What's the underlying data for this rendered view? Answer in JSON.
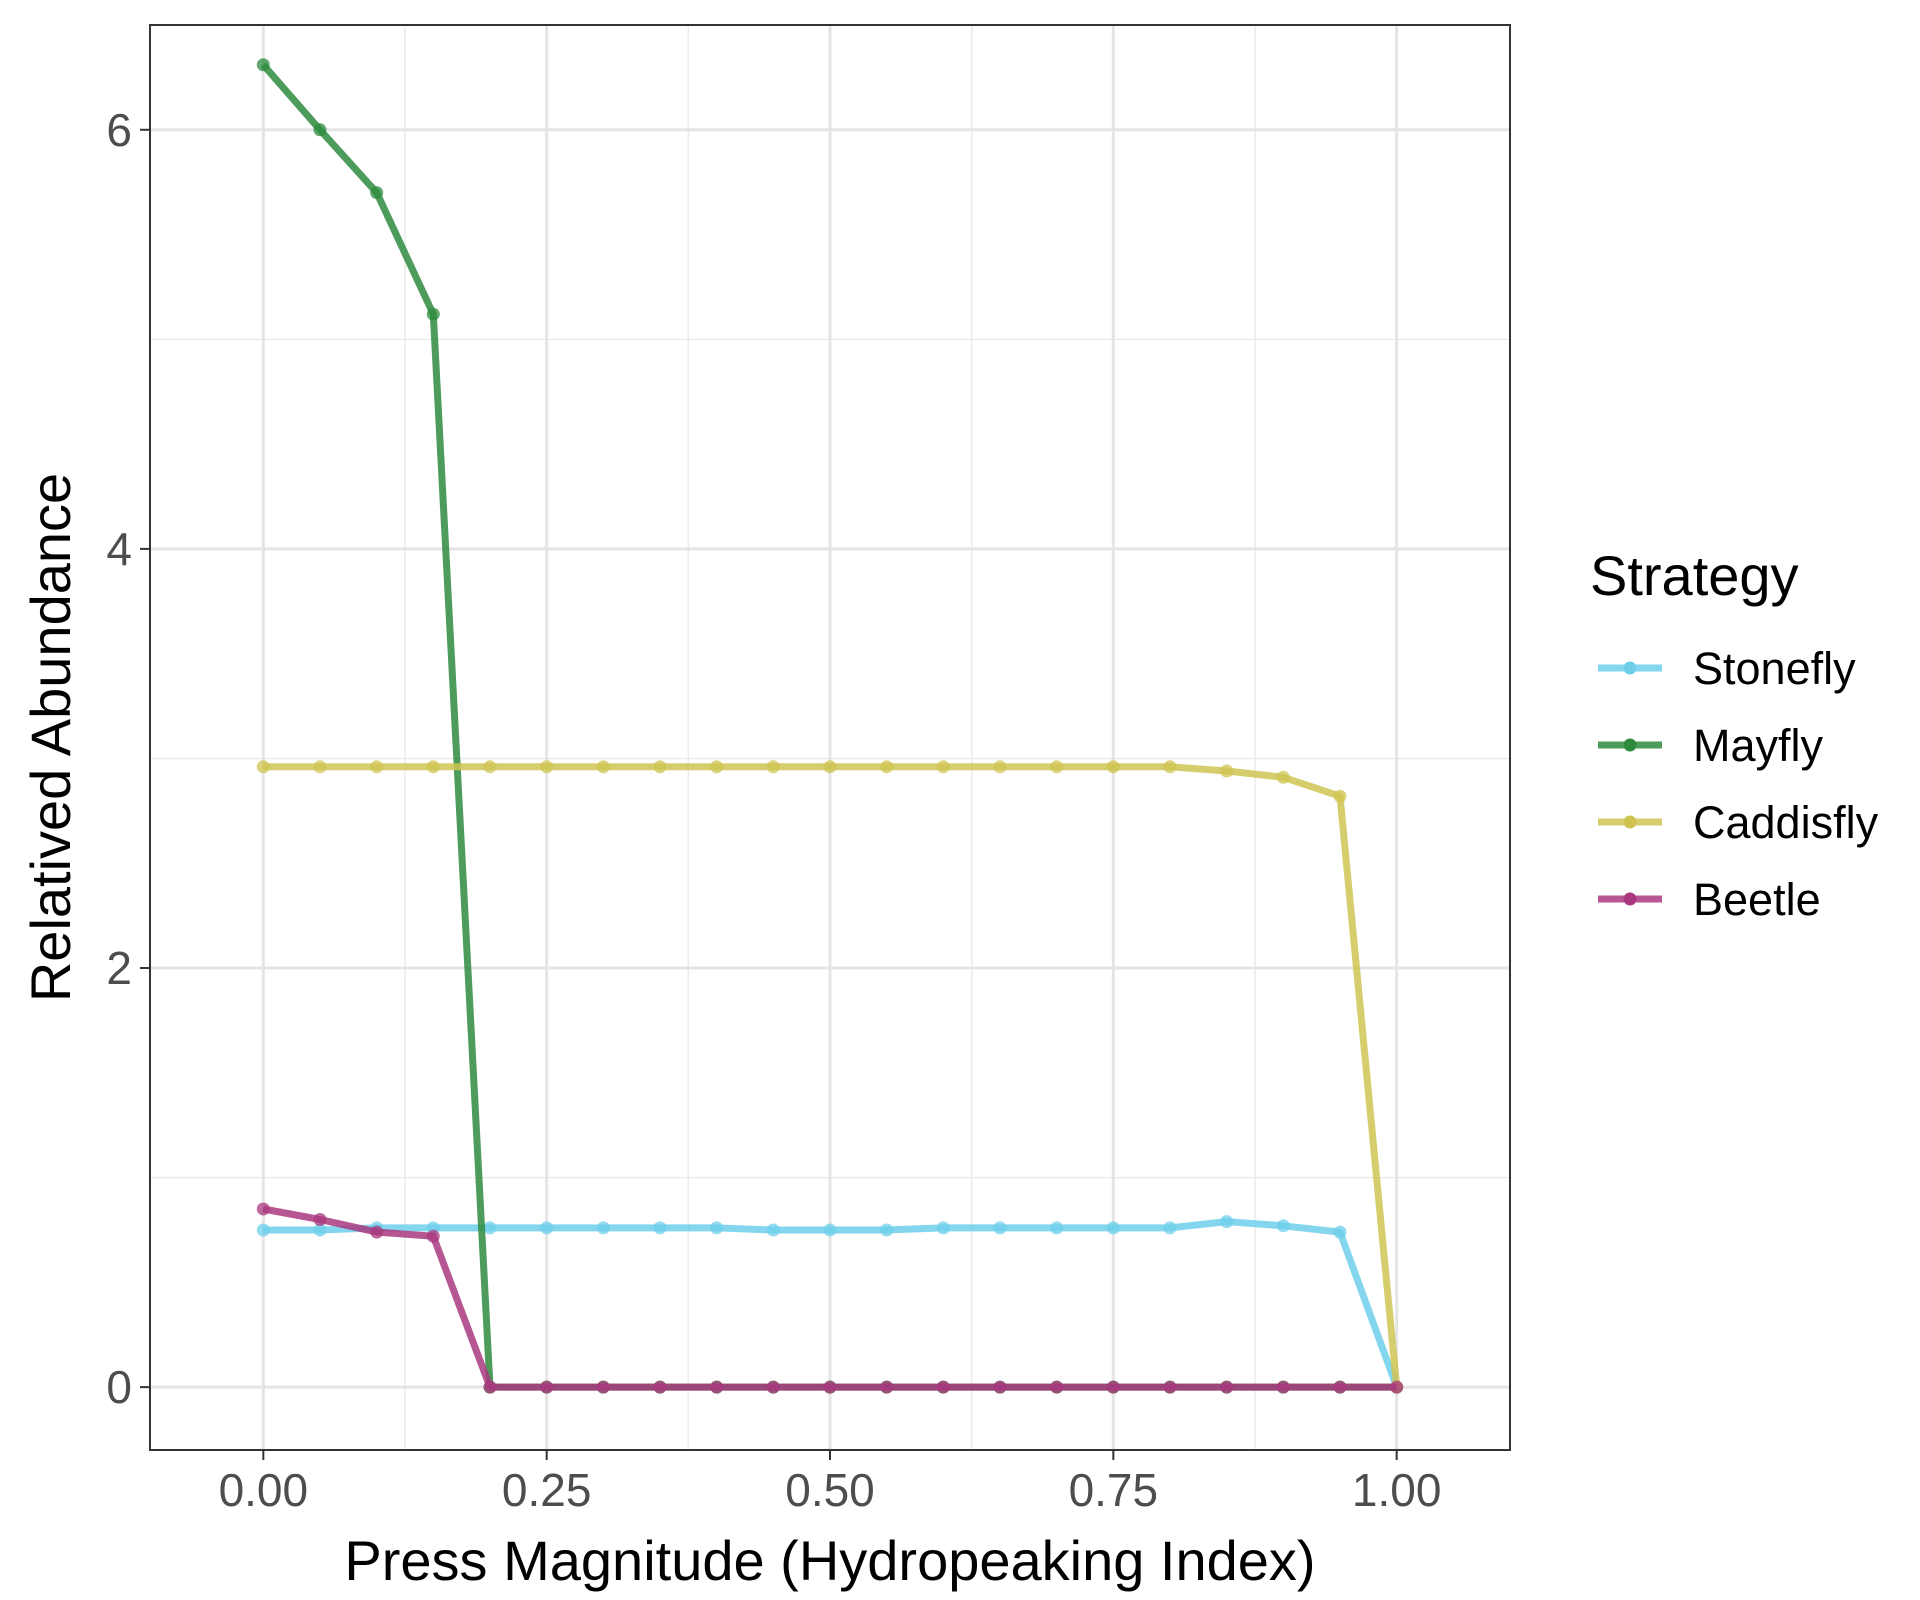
{
  "chart_data": {
    "type": "line",
    "xlabel": "Press Magnitude (Hydropeaking Index)",
    "ylabel": "Relatived Abundance",
    "xlim": [
      -0.1,
      1.1
    ],
    "ylim": [
      -0.3,
      6.5
    ],
    "xticks": [
      0.0,
      0.25,
      0.5,
      0.75,
      1.0
    ],
    "xtick_labels": [
      "0.00",
      "0.25",
      "0.50",
      "0.75",
      "1.00"
    ],
    "yticks": [
      0,
      2,
      4,
      6
    ],
    "ytick_labels": [
      "0",
      "2",
      "4",
      "6"
    ],
    "grid": true,
    "legend_position": "right",
    "legend_title": "Strategy",
    "x": [
      0.0,
      0.05,
      0.1,
      0.15,
      0.2,
      0.25,
      0.3,
      0.35,
      0.4,
      0.45,
      0.5,
      0.55,
      0.6,
      0.65,
      0.7,
      0.75,
      0.8,
      0.85,
      0.9,
      0.95,
      1.0
    ],
    "series": [
      {
        "name": "Stonefly",
        "color": "#6fcfeb",
        "values": [
          0.75,
          0.75,
          0.76,
          0.76,
          0.76,
          0.76,
          0.76,
          0.76,
          0.76,
          0.75,
          0.75,
          0.75,
          0.76,
          0.76,
          0.76,
          0.76,
          0.76,
          0.79,
          0.77,
          0.74,
          0.0
        ]
      },
      {
        "name": "Mayfly",
        "color": "#2e8b3e",
        "values": [
          6.31,
          6.0,
          5.7,
          5.12,
          0.0,
          0.0,
          0.0,
          0.0,
          0.0,
          0.0,
          0.0,
          0.0,
          0.0,
          0.0,
          0.0,
          0.0,
          0.0,
          0.0,
          0.0,
          0.0,
          0.0
        ]
      },
      {
        "name": "Caddisfly",
        "color": "#cfc452",
        "values": [
          2.96,
          2.96,
          2.96,
          2.96,
          2.96,
          2.96,
          2.96,
          2.96,
          2.96,
          2.96,
          2.96,
          2.96,
          2.96,
          2.96,
          2.96,
          2.96,
          2.96,
          2.94,
          2.91,
          2.82,
          0.0
        ]
      },
      {
        "name": "Beetle",
        "color": "#a9387f",
        "values": [
          0.85,
          0.8,
          0.74,
          0.72,
          0.0,
          0.0,
          0.0,
          0.0,
          0.0,
          0.0,
          0.0,
          0.0,
          0.0,
          0.0,
          0.0,
          0.0,
          0.0,
          0.0,
          0.0,
          0.0,
          0.0
        ]
      }
    ]
  }
}
